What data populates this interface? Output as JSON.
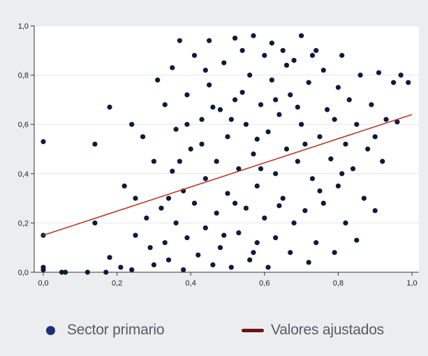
{
  "chart_data": {
    "type": "scatter",
    "title": "",
    "xlabel": "",
    "ylabel": "",
    "xlim": [
      0,
      1
    ],
    "ylim": [
      0,
      1
    ],
    "x_ticks": [
      "0,0",
      "0,2",
      "0,4",
      "0,6",
      "0,8",
      "1,0"
    ],
    "y_ticks": [
      "0,0",
      "0,2",
      "0,4",
      "0,6",
      "0,8",
      "1,0"
    ],
    "grid": "horizontal",
    "legend_position": "bottom",
    "series": [
      {
        "name": "Sector primario",
        "kind": "scatter",
        "color": "#0d1a3c",
        "points": [
          [
            0.0,
            0.53
          ],
          [
            0.0,
            0.15
          ],
          [
            0.0,
            0.02
          ],
          [
            0.0,
            0.01
          ],
          [
            0.05,
            0.0
          ],
          [
            0.06,
            0.0
          ],
          [
            0.12,
            0.0
          ],
          [
            0.14,
            0.52
          ],
          [
            0.14,
            0.2
          ],
          [
            0.17,
            0.0
          ],
          [
            0.18,
            0.67
          ],
          [
            0.18,
            0.06
          ],
          [
            0.21,
            0.02
          ],
          [
            0.22,
            0.35
          ],
          [
            0.24,
            0.01
          ],
          [
            0.24,
            0.6
          ],
          [
            0.25,
            0.3
          ],
          [
            0.25,
            0.15
          ],
          [
            0.27,
            0.55
          ],
          [
            0.28,
            0.22
          ],
          [
            0.29,
            0.1
          ],
          [
            0.3,
            0.03
          ],
          [
            0.3,
            0.45
          ],
          [
            0.31,
            0.78
          ],
          [
            0.32,
            0.26
          ],
          [
            0.33,
            0.68
          ],
          [
            0.33,
            0.12
          ],
          [
            0.34,
            0.05
          ],
          [
            0.35,
            0.41
          ],
          [
            0.35,
            0.83
          ],
          [
            0.36,
            0.58
          ],
          [
            0.36,
            0.2
          ],
          [
            0.37,
            0.94
          ],
          [
            0.38,
            0.33
          ],
          [
            0.38,
            0.01
          ],
          [
            0.39,
            0.72
          ],
          [
            0.39,
            0.14
          ],
          [
            0.4,
            0.5
          ],
          [
            0.41,
            0.28
          ],
          [
            0.41,
            0.88
          ],
          [
            0.42,
            0.07
          ],
          [
            0.43,
            0.62
          ],
          [
            0.44,
            0.38
          ],
          [
            0.44,
            0.18
          ],
          [
            0.45,
            0.94
          ],
          [
            0.45,
            0.76
          ],
          [
            0.46,
            0.03
          ],
          [
            0.47,
            0.45
          ],
          [
            0.47,
            0.24
          ],
          [
            0.48,
            0.66
          ],
          [
            0.48,
            0.1
          ],
          [
            0.49,
            0.85
          ],
          [
            0.5,
            0.55
          ],
          [
            0.5,
            0.32
          ],
          [
            0.51,
            0.02
          ],
          [
            0.52,
            0.95
          ],
          [
            0.52,
            0.7
          ],
          [
            0.53,
            0.16
          ],
          [
            0.53,
            0.42
          ],
          [
            0.54,
            0.9
          ],
          [
            0.55,
            0.6
          ],
          [
            0.55,
            0.26
          ],
          [
            0.56,
            0.05
          ],
          [
            0.56,
            0.8
          ],
          [
            0.57,
            0.96
          ],
          [
            0.57,
            0.48
          ],
          [
            0.58,
            0.12
          ],
          [
            0.58,
            0.35
          ],
          [
            0.59,
            0.68
          ],
          [
            0.6,
            0.88
          ],
          [
            0.6,
            0.22
          ],
          [
            0.61,
            0.57
          ],
          [
            0.61,
            0.02
          ],
          [
            0.62,
            0.78
          ],
          [
            0.63,
            0.4
          ],
          [
            0.63,
            0.14
          ],
          [
            0.64,
            0.64
          ],
          [
            0.65,
            0.9
          ],
          [
            0.65,
            0.3
          ],
          [
            0.66,
            0.5
          ],
          [
            0.67,
            0.08
          ],
          [
            0.67,
            0.72
          ],
          [
            0.68,
            0.2
          ],
          [
            0.68,
            0.86
          ],
          [
            0.69,
            0.45
          ],
          [
            0.7,
            0.6
          ],
          [
            0.7,
            0.96
          ],
          [
            0.71,
            0.25
          ],
          [
            0.72,
            0.04
          ],
          [
            0.72,
            0.77
          ],
          [
            0.73,
            0.38
          ],
          [
            0.74,
            0.9
          ],
          [
            0.74,
            0.12
          ],
          [
            0.75,
            0.55
          ],
          [
            0.76,
            0.82
          ],
          [
            0.76,
            0.28
          ],
          [
            0.77,
            0.66
          ],
          [
            0.78,
            0.46
          ],
          [
            0.79,
            0.08
          ],
          [
            0.8,
            0.75
          ],
          [
            0.8,
            0.35
          ],
          [
            0.81,
            0.88
          ],
          [
            0.82,
            0.52
          ],
          [
            0.82,
            0.2
          ],
          [
            0.83,
            0.7
          ],
          [
            0.84,
            0.42
          ],
          [
            0.85,
            0.6
          ],
          [
            0.85,
            0.13
          ],
          [
            0.86,
            0.8
          ],
          [
            0.87,
            0.3
          ],
          [
            0.88,
            0.5
          ],
          [
            0.89,
            0.68
          ],
          [
            0.9,
            0.25
          ],
          [
            0.9,
            0.55
          ],
          [
            0.91,
            0.81
          ],
          [
            0.92,
            0.45
          ],
          [
            0.93,
            0.62
          ],
          [
            0.95,
            0.77
          ],
          [
            0.96,
            0.61
          ],
          [
            0.97,
            0.8
          ],
          [
            0.99,
            0.77
          ],
          [
            0.37,
            0.45
          ],
          [
            0.43,
            0.52
          ],
          [
            0.49,
            0.15
          ],
          [
            0.54,
            0.73
          ],
          [
            0.59,
            0.42
          ],
          [
            0.64,
            0.27
          ],
          [
            0.69,
            0.67
          ],
          [
            0.75,
            0.33
          ],
          [
            0.62,
            0.93
          ],
          [
            0.46,
            0.67
          ],
          [
            0.39,
            0.6
          ],
          [
            0.52,
            0.28
          ],
          [
            0.57,
            0.08
          ],
          [
            0.66,
            0.84
          ],
          [
            0.71,
            0.52
          ],
          [
            0.79,
            0.62
          ],
          [
            0.34,
            0.3
          ],
          [
            0.44,
            0.82
          ],
          [
            0.51,
            0.62
          ],
          [
            0.58,
            0.54
          ],
          [
            0.63,
            0.7
          ],
          [
            0.73,
            0.88
          ],
          [
            0.81,
            0.4
          ]
        ]
      },
      {
        "name": "Valores ajustados",
        "kind": "line",
        "color": "#b8382a",
        "points": [
          [
            0.0,
            0.15
          ],
          [
            1.0,
            0.64
          ]
        ]
      }
    ]
  },
  "legend": {
    "primary_label": "Sector primario",
    "fitted_label": "Valores ajustados",
    "primary_color": "#1b2f7a",
    "fitted_color": "#6a1416"
  }
}
